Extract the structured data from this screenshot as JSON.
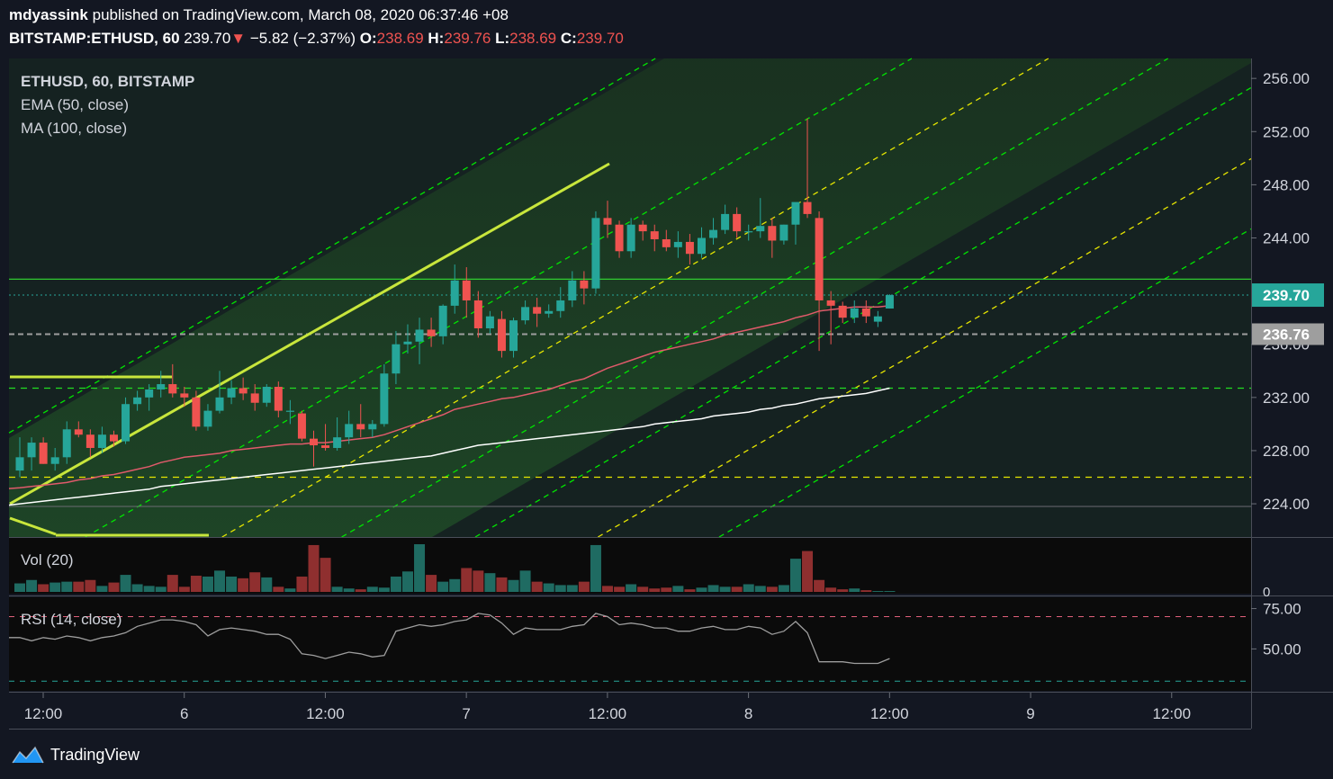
{
  "header": {
    "author": "mdyassink",
    "published_text": "published on TradingView.com, March 08, 2020 06:37:46 +08",
    "symbol": "BITSTAMP:ETHUSD, 60",
    "last": "239.70",
    "change_arrow": "▼",
    "change": "−5.82 (−2.37%)",
    "o_label": "O:",
    "o_value": "238.69",
    "h_label": "H:",
    "h_value": "239.76",
    "l_label": "L:",
    "l_value": "238.69",
    "c_label": "C:",
    "c_value": "239.70"
  },
  "legend": {
    "title": "ETHUSD, 60, BITSTAMP",
    "ema": "EMA (50, close)",
    "ma": "MA (100, close)",
    "vol": "Vol (20)",
    "rsi": "RSI (14, close)"
  },
  "branding": {
    "name": "TradingView"
  },
  "colors": {
    "background": "#131722",
    "up": "#26a69a",
    "down": "#ef5350",
    "ema": "#e05a6b",
    "ma": "#ffffff",
    "channel_green": "#00e600",
    "channel_yellow": "#e6e600",
    "rsi": "#9e9e9e"
  },
  "chart_data": {
    "type": "candlestick",
    "symbol": "ETHUSD",
    "interval": "60",
    "exchange": "BITSTAMP",
    "price_axis": {
      "ticks": [
        "256.00",
        "252.00",
        "248.00",
        "244.00",
        "236.00",
        "232.00",
        "228.00",
        "224.00"
      ],
      "range": [
        221.5,
        257.5
      ]
    },
    "price_labels": {
      "last": "239.70",
      "marked_level": "236.76"
    },
    "levels": {
      "resistance": 240.9,
      "support_dashed": [
        232.7,
        226.0
      ],
      "gray_line": 223.8
    },
    "time_axis": {
      "labels": [
        "12:00",
        "6",
        "12:00",
        "7",
        "12:00",
        "8",
        "12:00",
        "9",
        "12:00"
      ],
      "label_bars": [
        0,
        12,
        24,
        36,
        48,
        60,
        72,
        84,
        96
      ]
    },
    "candles": [
      {
        "o": 226.5,
        "h": 229.0,
        "l": 226.0,
        "c": 227.5
      },
      {
        "o": 227.5,
        "h": 229.0,
        "l": 226.5,
        "c": 228.6
      },
      {
        "o": 228.6,
        "h": 229.0,
        "l": 227.0,
        "c": 227.0
      },
      {
        "o": 227.0,
        "h": 228.2,
        "l": 226.5,
        "c": 227.5
      },
      {
        "o": 227.5,
        "h": 230.2,
        "l": 227.0,
        "c": 229.6
      },
      {
        "o": 229.6,
        "h": 230.2,
        "l": 229.0,
        "c": 229.2
      },
      {
        "o": 229.2,
        "h": 229.6,
        "l": 227.5,
        "c": 228.2
      },
      {
        "o": 228.2,
        "h": 229.8,
        "l": 227.8,
        "c": 229.2
      },
      {
        "o": 229.2,
        "h": 229.5,
        "l": 228.3,
        "c": 228.7
      },
      {
        "o": 228.7,
        "h": 232.0,
        "l": 228.5,
        "c": 231.5
      },
      {
        "o": 231.5,
        "h": 232.5,
        "l": 231.0,
        "c": 232.0
      },
      {
        "o": 232.0,
        "h": 233.0,
        "l": 231.0,
        "c": 232.6
      },
      {
        "o": 232.6,
        "h": 234.0,
        "l": 232.0,
        "c": 233.0
      },
      {
        "o": 233.0,
        "h": 234.5,
        "l": 232.0,
        "c": 232.3
      },
      {
        "o": 232.3,
        "h": 232.8,
        "l": 231.3,
        "c": 232.0
      },
      {
        "o": 232.0,
        "h": 232.5,
        "l": 229.5,
        "c": 229.8
      },
      {
        "o": 229.8,
        "h": 231.5,
        "l": 229.5,
        "c": 231.0
      },
      {
        "o": 231.0,
        "h": 234.0,
        "l": 230.8,
        "c": 232.0
      },
      {
        "o": 232.0,
        "h": 233.3,
        "l": 231.5,
        "c": 232.7
      },
      {
        "o": 232.7,
        "h": 233.5,
        "l": 231.8,
        "c": 232.3
      },
      {
        "o": 232.3,
        "h": 233.0,
        "l": 231.0,
        "c": 231.6
      },
      {
        "o": 231.6,
        "h": 233.0,
        "l": 231.3,
        "c": 232.8
      },
      {
        "o": 232.8,
        "h": 233.2,
        "l": 230.5,
        "c": 231.0
      },
      {
        "o": 231.0,
        "h": 231.8,
        "l": 230.0,
        "c": 231.0
      },
      {
        "o": 230.8,
        "h": 231.0,
        "l": 228.7,
        "c": 228.9
      },
      {
        "o": 228.9,
        "h": 229.5,
        "l": 226.8,
        "c": 228.4
      },
      {
        "o": 228.4,
        "h": 230.0,
        "l": 228.0,
        "c": 228.2
      },
      {
        "o": 228.2,
        "h": 230.5,
        "l": 228.0,
        "c": 229.0
      },
      {
        "o": 229.0,
        "h": 231.0,
        "l": 228.5,
        "c": 230.0
      },
      {
        "o": 230.0,
        "h": 231.5,
        "l": 229.0,
        "c": 229.6
      },
      {
        "o": 229.6,
        "h": 230.3,
        "l": 229.0,
        "c": 230.0
      },
      {
        "o": 230.0,
        "h": 234.5,
        "l": 229.8,
        "c": 233.8
      },
      {
        "o": 233.8,
        "h": 237.0,
        "l": 233.0,
        "c": 236.0
      },
      {
        "o": 236.0,
        "h": 237.5,
        "l": 235.3,
        "c": 236.2
      },
      {
        "o": 236.2,
        "h": 238.0,
        "l": 234.5,
        "c": 237.1
      },
      {
        "o": 237.1,
        "h": 238.0,
        "l": 235.8,
        "c": 236.6
      },
      {
        "o": 236.6,
        "h": 239.0,
        "l": 236.0,
        "c": 238.9
      },
      {
        "o": 238.9,
        "h": 242.0,
        "l": 238.3,
        "c": 240.8
      },
      {
        "o": 240.8,
        "h": 241.8,
        "l": 238.0,
        "c": 239.3
      },
      {
        "o": 239.3,
        "h": 240.0,
        "l": 236.5,
        "c": 237.2
      },
      {
        "o": 237.2,
        "h": 238.5,
        "l": 236.8,
        "c": 238.1
      },
      {
        "o": 237.9,
        "h": 238.5,
        "l": 235.0,
        "c": 235.5
      },
      {
        "o": 235.5,
        "h": 238.0,
        "l": 235.0,
        "c": 237.8
      },
      {
        "o": 237.8,
        "h": 239.3,
        "l": 237.5,
        "c": 238.8
      },
      {
        "o": 238.8,
        "h": 239.5,
        "l": 237.3,
        "c": 238.3
      },
      {
        "o": 238.3,
        "h": 239.0,
        "l": 238.0,
        "c": 238.5
      },
      {
        "o": 238.5,
        "h": 240.3,
        "l": 238.0,
        "c": 239.3
      },
      {
        "o": 239.3,
        "h": 241.5,
        "l": 238.8,
        "c": 240.8
      },
      {
        "o": 240.8,
        "h": 241.5,
        "l": 239.0,
        "c": 240.2
      },
      {
        "o": 240.2,
        "h": 246.0,
        "l": 239.8,
        "c": 245.5
      },
      {
        "o": 245.5,
        "h": 246.8,
        "l": 244.0,
        "c": 245.0
      },
      {
        "o": 245.0,
        "h": 245.3,
        "l": 242.5,
        "c": 243.0
      },
      {
        "o": 243.0,
        "h": 245.5,
        "l": 242.5,
        "c": 245.0
      },
      {
        "o": 245.0,
        "h": 245.3,
        "l": 243.8,
        "c": 244.5
      },
      {
        "o": 244.5,
        "h": 245.0,
        "l": 243.0,
        "c": 243.9
      },
      {
        "o": 243.9,
        "h": 244.6,
        "l": 243.0,
        "c": 243.3
      },
      {
        "o": 243.3,
        "h": 244.5,
        "l": 242.5,
        "c": 243.7
      },
      {
        "o": 243.7,
        "h": 244.3,
        "l": 242.0,
        "c": 242.8
      },
      {
        "o": 242.8,
        "h": 244.8,
        "l": 242.5,
        "c": 244.0
      },
      {
        "o": 244.0,
        "h": 245.5,
        "l": 243.5,
        "c": 244.6
      },
      {
        "o": 244.6,
        "h": 246.5,
        "l": 244.3,
        "c": 245.8
      },
      {
        "o": 245.8,
        "h": 246.3,
        "l": 244.0,
        "c": 244.5
      },
      {
        "o": 244.5,
        "h": 245.0,
        "l": 243.8,
        "c": 244.5
      },
      {
        "o": 244.5,
        "h": 247.0,
        "l": 244.0,
        "c": 244.9
      },
      {
        "o": 244.9,
        "h": 245.5,
        "l": 242.5,
        "c": 243.8
      },
      {
        "o": 243.8,
        "h": 245.0,
        "l": 243.5,
        "c": 245.0
      },
      {
        "o": 245.0,
        "h": 246.5,
        "l": 243.5,
        "c": 246.7
      },
      {
        "o": 246.7,
        "h": 253.0,
        "l": 245.5,
        "c": 245.8
      },
      {
        "o": 245.5,
        "h": 246.0,
        "l": 235.5,
        "c": 239.3
      },
      {
        "o": 239.3,
        "h": 240.0,
        "l": 236.0,
        "c": 238.9
      },
      {
        "o": 238.9,
        "h": 239.2,
        "l": 237.6,
        "c": 238.0
      },
      {
        "o": 238.0,
        "h": 239.3,
        "l": 237.6,
        "c": 238.7
      },
      {
        "o": 238.7,
        "h": 239.3,
        "l": 237.6,
        "c": 238.1
      },
      {
        "o": 237.7,
        "h": 238.5,
        "l": 237.3,
        "c": 238.1
      },
      {
        "o": 238.69,
        "h": 239.76,
        "l": 238.69,
        "c": 239.7
      }
    ],
    "ema_values": [
      225.2,
      225.3,
      225.4,
      225.5,
      225.6,
      225.8,
      225.9,
      226.1,
      226.2,
      226.4,
      226.6,
      226.8,
      227.1,
      227.3,
      227.5,
      227.6,
      227.7,
      227.8,
      228.0,
      228.1,
      228.2,
      228.3,
      228.4,
      228.5,
      228.5,
      228.6,
      228.6,
      228.7,
      228.8,
      228.9,
      229.0,
      229.2,
      229.5,
      229.8,
      230.1,
      230.4,
      230.7,
      231.1,
      231.3,
      231.5,
      231.7,
      231.9,
      232.0,
      232.2,
      232.4,
      232.6,
      232.9,
      233.2,
      233.4,
      233.8,
      234.2,
      234.5,
      234.8,
      235.1,
      235.4,
      235.6,
      235.8,
      236.0,
      236.2,
      236.4,
      236.7,
      236.9,
      237.1,
      237.3,
      237.5,
      237.7,
      238.0,
      238.2,
      238.5,
      238.6,
      238.7,
      238.8,
      238.8,
      238.8,
      238.9
    ],
    "ma_values": [
      224.0,
      224.1,
      224.2,
      224.3,
      224.4,
      224.5,
      224.6,
      224.7,
      224.8,
      224.9,
      225.0,
      225.1,
      225.3,
      225.4,
      225.5,
      225.6,
      225.7,
      225.8,
      225.9,
      226.0,
      226.1,
      226.2,
      226.3,
      226.4,
      226.5,
      226.6,
      226.7,
      226.8,
      226.9,
      227.0,
      227.1,
      227.2,
      227.3,
      227.4,
      227.5,
      227.6,
      227.8,
      228.0,
      228.2,
      228.4,
      228.5,
      228.6,
      228.7,
      228.8,
      228.9,
      229.0,
      229.1,
      229.2,
      229.3,
      229.4,
      229.5,
      229.6,
      229.7,
      229.8,
      230.0,
      230.1,
      230.2,
      230.3,
      230.4,
      230.6,
      230.7,
      230.8,
      230.9,
      231.1,
      231.2,
      231.4,
      231.5,
      231.7,
      231.9,
      232.0,
      232.1,
      232.2,
      232.3,
      232.5,
      232.7
    ],
    "volume": [
      10,
      14,
      9,
      11,
      12,
      12,
      14,
      7,
      11,
      20,
      9,
      7,
      6,
      20,
      6,
      19,
      18,
      25,
      18,
      16,
      23,
      17,
      6,
      4,
      18,
      55,
      40,
      6,
      4,
      3,
      6,
      5,
      18,
      24,
      56,
      20,
      12,
      15,
      28,
      25,
      22,
      17,
      14,
      25,
      12,
      10,
      8,
      8,
      12,
      55,
      7,
      6,
      9,
      6,
      4,
      5,
      7,
      3,
      5,
      8,
      6,
      6,
      9,
      7,
      6,
      8,
      39,
      48,
      14,
      5,
      3,
      4,
      2,
      1,
      1
    ],
    "volume_axis": {
      "zero_label": "0"
    },
    "rsi_values": [
      57,
      55,
      57,
      56,
      58,
      57,
      55,
      57,
      58,
      60,
      64,
      66,
      68,
      68,
      67,
      65,
      58,
      62,
      63,
      62,
      61,
      59,
      59,
      56,
      47,
      46,
      44,
      46,
      48,
      47,
      45,
      46,
      61,
      63,
      65,
      64,
      65,
      67,
      68,
      72,
      71,
      66,
      59,
      63,
      62,
      62,
      62,
      64,
      65,
      72,
      70,
      65,
      66,
      65,
      63,
      63,
      61,
      61,
      63,
      64,
      62,
      62,
      64,
      63,
      59,
      61,
      67,
      60,
      42,
      42,
      42,
      41,
      41,
      41,
      44
    ],
    "rsi_axis": {
      "ticks": [
        "75.00",
        "50.00"
      ],
      "range": [
        24,
        82
      ],
      "bands": [
        70,
        30
      ]
    }
  }
}
